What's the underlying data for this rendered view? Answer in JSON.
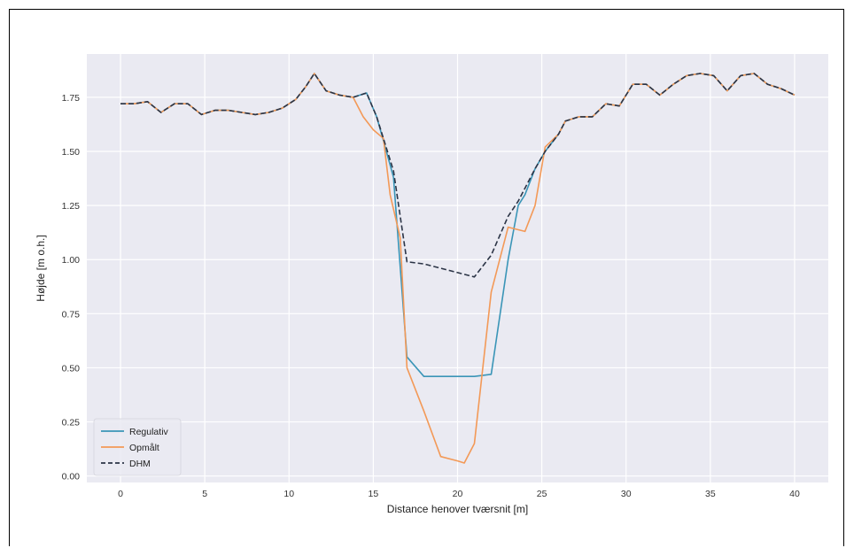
{
  "chart_data": {
    "type": "line",
    "title": "",
    "xlabel": "Distance henover tværsnit [m]",
    "ylabel": "Højde [m o.h.]",
    "xlim": [
      -2,
      42
    ],
    "ylim": [
      -0.03,
      1.95
    ],
    "xticks": [
      0,
      5,
      10,
      15,
      20,
      25,
      30,
      35,
      40
    ],
    "xtick_labels": [
      "0",
      "5",
      "10",
      "15",
      "20",
      "25",
      "30",
      "35",
      "40"
    ],
    "yticks": [
      0.0,
      0.25,
      0.5,
      0.75,
      1.0,
      1.25,
      1.5,
      1.75
    ],
    "ytick_labels": [
      "0.00",
      "0.25",
      "0.50",
      "0.75",
      "1.00",
      "1.25",
      "1.50",
      "1.75"
    ],
    "grid": true,
    "background": "#eaeaf2",
    "legend_position": "lower-left",
    "series": [
      {
        "name": "Regulativ",
        "color": "#3a95b7",
        "style": "solid",
        "x": [
          0,
          0.8,
          1.6,
          2.4,
          3.2,
          4.0,
          4.8,
          5.6,
          6.4,
          7.2,
          8.0,
          8.8,
          9.6,
          10.4,
          11.0,
          11.5,
          12.2,
          13.0,
          13.8,
          14.6,
          15.2,
          15.6,
          16.2,
          17.0,
          18.0,
          19.0,
          20.0,
          21.0,
          22.0,
          23.0,
          23.6,
          24.0,
          24.6,
          25.2,
          26.0,
          26.4,
          27.2,
          28.0,
          28.8,
          29.6,
          30.4,
          31.2,
          32.0,
          32.8,
          33.6,
          34.4,
          35.2,
          36.0,
          36.8,
          37.6,
          38.4,
          39.2,
          40.0
        ],
        "y": [
          1.72,
          1.72,
          1.73,
          1.68,
          1.72,
          1.72,
          1.67,
          1.69,
          1.69,
          1.68,
          1.67,
          1.68,
          1.7,
          1.74,
          1.8,
          1.86,
          1.78,
          1.76,
          1.75,
          1.77,
          1.66,
          1.55,
          1.38,
          0.55,
          0.46,
          0.46,
          0.46,
          0.46,
          0.47,
          1.0,
          1.25,
          1.3,
          1.42,
          1.5,
          1.58,
          1.64,
          1.66,
          1.66,
          1.72,
          1.71,
          1.81,
          1.81,
          1.76,
          1.81,
          1.85,
          1.86,
          1.85,
          1.78,
          1.85,
          1.86,
          1.81,
          1.79,
          1.76
        ]
      },
      {
        "name": "Opmålt",
        "color": "#f39957",
        "style": "solid",
        "x": [
          0,
          0.8,
          1.6,
          2.4,
          3.2,
          4.0,
          4.8,
          5.6,
          6.4,
          7.2,
          8.0,
          8.8,
          9.6,
          10.4,
          11.0,
          11.5,
          12.2,
          13.0,
          13.8,
          14.4,
          15.0,
          15.6,
          16.0,
          16.6,
          17.0,
          18.0,
          19.0,
          20.0,
          20.4,
          21.0,
          22.0,
          23.0,
          24.0,
          24.6,
          25.2,
          26.0,
          26.4,
          27.2,
          28.0,
          28.8,
          29.6,
          30.4,
          31.2,
          32.0,
          32.8,
          33.6,
          34.4,
          35.2,
          36.0,
          36.8,
          37.6,
          38.4,
          39.2,
          40.0
        ],
        "y": [
          1.72,
          1.72,
          1.73,
          1.68,
          1.72,
          1.72,
          1.67,
          1.69,
          1.69,
          1.68,
          1.67,
          1.68,
          1.7,
          1.74,
          1.8,
          1.86,
          1.78,
          1.76,
          1.75,
          1.66,
          1.6,
          1.56,
          1.3,
          1.1,
          0.5,
          0.3,
          0.09,
          0.07,
          0.06,
          0.15,
          0.85,
          1.15,
          1.13,
          1.25,
          1.52,
          1.58,
          1.64,
          1.66,
          1.66,
          1.72,
          1.71,
          1.81,
          1.81,
          1.76,
          1.81,
          1.85,
          1.86,
          1.85,
          1.78,
          1.85,
          1.86,
          1.81,
          1.79,
          1.76
        ]
      },
      {
        "name": "DHM",
        "color": "#2b3446",
        "style": "dashed",
        "x": [
          0,
          0.8,
          1.6,
          2.4,
          3.2,
          4.0,
          4.8,
          5.6,
          6.4,
          7.2,
          8.0,
          8.8,
          9.6,
          10.4,
          11.0,
          11.5,
          12.2,
          13.0,
          13.8,
          14.6,
          15.2,
          15.6,
          16.2,
          17.0,
          18.0,
          19.0,
          20.0,
          21.0,
          22.0,
          23.0,
          23.6,
          24.0,
          24.6,
          25.2,
          26.0,
          26.4,
          27.2,
          28.0,
          28.8,
          29.6,
          30.4,
          31.2,
          32.0,
          32.8,
          33.6,
          34.4,
          35.2,
          36.0,
          36.8,
          37.6,
          38.4,
          39.2,
          40.0
        ],
        "y": [
          1.72,
          1.72,
          1.73,
          1.68,
          1.72,
          1.72,
          1.67,
          1.69,
          1.69,
          1.68,
          1.67,
          1.68,
          1.7,
          1.74,
          1.8,
          1.86,
          1.78,
          1.76,
          1.75,
          1.77,
          1.66,
          1.56,
          1.41,
          0.99,
          0.98,
          0.96,
          0.94,
          0.92,
          1.02,
          1.2,
          1.27,
          1.33,
          1.42,
          1.5,
          1.58,
          1.64,
          1.66,
          1.66,
          1.72,
          1.71,
          1.81,
          1.81,
          1.76,
          1.81,
          1.85,
          1.86,
          1.85,
          1.78,
          1.85,
          1.86,
          1.81,
          1.79,
          1.76
        ]
      }
    ]
  }
}
